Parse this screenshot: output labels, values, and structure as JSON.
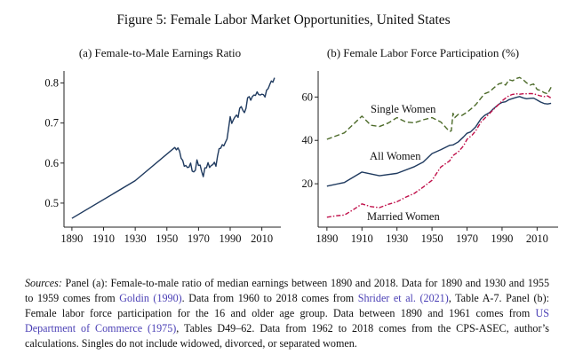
{
  "figure_title": "Figure 5: Female Labor Market Opportunities, United States",
  "chart_data": [
    {
      "type": "line",
      "title": "(a) Female-to-Male Earnings Ratio",
      "xlabel": "",
      "ylabel": "",
      "xlim": [
        1885,
        2022
      ],
      "ylim": [
        0.44,
        0.83
      ],
      "xticks": [
        1890,
        1910,
        1930,
        1950,
        1970,
        1990,
        2010
      ],
      "yticks": [
        0.5,
        0.6,
        0.7,
        0.8
      ],
      "ytick_labels": [
        "0.5",
        "0.6",
        "0.7",
        "0.8"
      ],
      "grid": false,
      "series": [
        {
          "name": "",
          "color": "#1f3a5f",
          "dash": "solid",
          "x": [
            1890,
            1930,
            1955,
            1956,
            1957,
            1958,
            1959,
            1960,
            1961,
            1962,
            1963,
            1964,
            1965,
            1966,
            1967,
            1968,
            1969,
            1970,
            1971,
            1972,
            1973,
            1974,
            1975,
            1976,
            1977,
            1978,
            1979,
            1980,
            1981,
            1982,
            1983,
            1984,
            1985,
            1986,
            1987,
            1988,
            1989,
            1990,
            1991,
            1992,
            1993,
            1994,
            1995,
            1996,
            1997,
            1998,
            1999,
            2000,
            2001,
            2002,
            2003,
            2004,
            2005,
            2006,
            2007,
            2008,
            2009,
            2010,
            2011,
            2012,
            2013,
            2014,
            2015,
            2016,
            2017,
            2018
          ],
          "y": [
            0.462,
            0.556,
            0.639,
            0.633,
            0.638,
            0.63,
            0.612,
            0.607,
            0.592,
            0.594,
            0.589,
            0.59,
            0.6,
            0.58,
            0.578,
            0.582,
            0.608,
            0.594,
            0.595,
            0.579,
            0.566,
            0.588,
            0.588,
            0.601,
            0.589,
            0.594,
            0.596,
            0.602,
            0.592,
            0.617,
            0.636,
            0.637,
            0.646,
            0.643,
            0.652,
            0.66,
            0.687,
            0.716,
            0.699,
            0.708,
            0.715,
            0.72,
            0.714,
            0.737,
            0.741,
            0.732,
            0.726,
            0.737,
            0.763,
            0.766,
            0.757,
            0.766,
            0.77,
            0.769,
            0.778,
            0.771,
            0.77,
            0.772,
            0.771,
            0.765,
            0.782,
            0.786,
            0.796,
            0.805,
            0.802,
            0.813
          ]
        }
      ]
    },
    {
      "type": "line",
      "title": "(b) Female Labor Force Participation (%)",
      "xlabel": "",
      "ylabel": "",
      "xlim": [
        1885,
        2022
      ],
      "ylim": [
        0,
        72
      ],
      "xticks": [
        1890,
        1910,
        1930,
        1950,
        1970,
        1990,
        2010
      ],
      "yticks": [
        20,
        40,
        60
      ],
      "grid": false,
      "annotations": [
        "Single Women",
        "All Women",
        "Married Women"
      ],
      "series": [
        {
          "name": "Single Women",
          "color": "#4d6b2a",
          "dash": "longdash",
          "x": [
            1890,
            1900,
            1910,
            1915,
            1920,
            1925,
            1930,
            1935,
            1940,
            1945,
            1950,
            1955,
            1960,
            1961,
            1962,
            1963,
            1965,
            1967,
            1970,
            1973,
            1975,
            1978,
            1980,
            1983,
            1985,
            1988,
            1990,
            1992,
            1994,
            1996,
            1998,
            2000,
            2002,
            2004,
            2006,
            2008,
            2010,
            2012,
            2014,
            2016,
            2018
          ],
          "y": [
            40.5,
            43.5,
            51.2,
            47,
            46.4,
            48,
            50.5,
            48.5,
            48.1,
            49.5,
            50.5,
            48.5,
            44.1,
            44.4,
            52.5,
            50.5,
            52,
            51.5,
            53,
            55,
            56.5,
            59.5,
            61.5,
            62.5,
            64,
            66,
            66.5,
            65.5,
            68,
            67.5,
            68.5,
            69,
            68,
            66.5,
            65.5,
            66,
            63.5,
            63,
            62,
            61.5,
            64.5
          ]
        },
        {
          "name": "All Women",
          "color": "#1f3a5f",
          "dash": "solid",
          "x": [
            1890,
            1900,
            1910,
            1920,
            1930,
            1940,
            1945,
            1950,
            1955,
            1960,
            1962,
            1965,
            1968,
            1970,
            1972,
            1975,
            1978,
            1980,
            1983,
            1985,
            1988,
            1990,
            1992,
            1994,
            1996,
            1998,
            2000,
            2002,
            2004,
            2006,
            2008,
            2010,
            2012,
            2014,
            2016,
            2018
          ],
          "y": [
            18.9,
            20.6,
            25.4,
            23.7,
            24.8,
            27.9,
            30,
            33.9,
            35.7,
            37.7,
            37.9,
            39.3,
            41.6,
            43.3,
            43.9,
            46.3,
            50,
            51.5,
            52.9,
            54.5,
            56.6,
            57.5,
            57.8,
            58.8,
            59.3,
            59.8,
            60.2,
            59.6,
            59.2,
            59.4,
            59.5,
            58.6,
            57.7,
            57,
            56.8,
            57.1
          ]
        },
        {
          "name": "Married Women",
          "color": "#c0104a",
          "dash": "dashdot",
          "x": [
            1890,
            1895,
            1900,
            1905,
            1910,
            1915,
            1920,
            1925,
            1930,
            1935,
            1940,
            1945,
            1950,
            1955,
            1960,
            1962,
            1965,
            1968,
            1970,
            1973,
            1975,
            1978,
            1980,
            1983,
            1985,
            1988,
            1990,
            1992,
            1994,
            1996,
            1998,
            2000,
            2002,
            2004,
            2006,
            2008,
            2010,
            2012,
            2014,
            2016,
            2018
          ],
          "y": [
            4.6,
            5.2,
            5.6,
            8,
            10.7,
            9.5,
            9,
            10.5,
            11.7,
            13.8,
            15.6,
            18.5,
            21.6,
            27.7,
            30.5,
            33,
            34.7,
            37.5,
            40.5,
            42.5,
            44.5,
            48.5,
            50.1,
            52.5,
            54.2,
            56.5,
            58.2,
            59.5,
            60.6,
            61.2,
            61.5,
            61.3,
            61.5,
            61.5,
            61.6,
            61.5,
            61,
            60.5,
            60.2,
            60.5,
            59.5
          ]
        }
      ]
    }
  ],
  "notes": {
    "sources_label": "Sources:",
    "part1": " Panel (a): Female-to-male ratio of median earnings between 1890 and 2018. Data for 1890 and 1930 and 1955 to 1959 comes from ",
    "cite1": "Goldin (1990)",
    "part2": ". Data from 1960 to 2018 comes from ",
    "cite2": "Shrider et al. (2021)",
    "part3": ", Table A-7. Panel (b): Female labor force participation for the 16 and older age group. Data between 1890 and 1961 comes from ",
    "cite3": "US Department of Commerce (1975)",
    "part4": ", Tables D49–62. Data from 1962 to 2018 comes from the CPS-ASEC, author’s calculations. Singles do not include widowed, divorced, or separated women."
  }
}
